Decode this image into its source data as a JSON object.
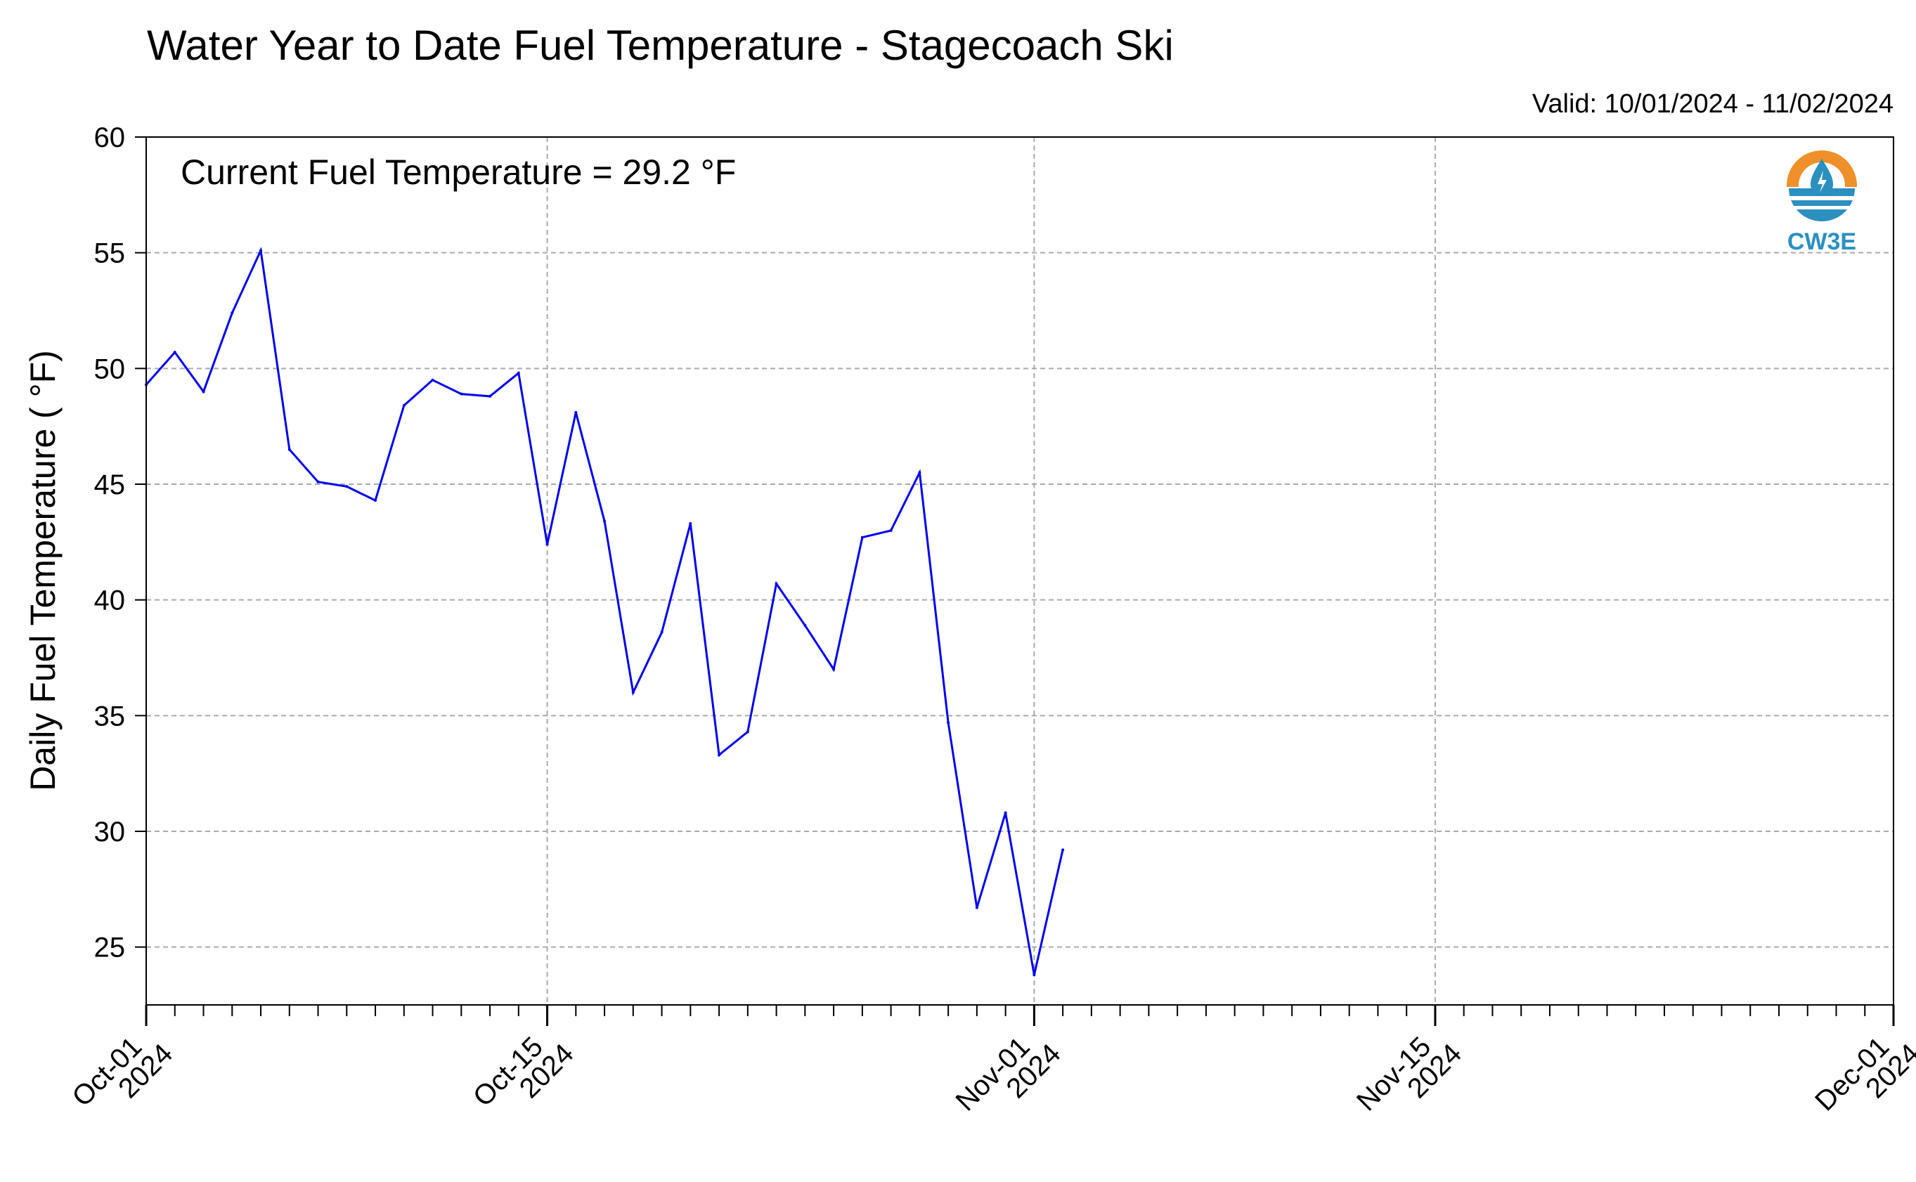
{
  "chart_data": {
    "type": "line",
    "title": "Water Year to Date Fuel Temperature - Stagecoach Ski",
    "subtitle": "Valid: 10/01/2024 - 11/02/2024",
    "annotation": "Current Fuel Temperature = 29.2 °F",
    "ylabel": "Daily Fuel Temperature ( °F)",
    "xlabel": "",
    "xlim": [
      "2024-10-01",
      "2024-12-01"
    ],
    "ylim": [
      22.5,
      60
    ],
    "y_ticks": [
      25,
      30,
      35,
      40,
      45,
      50,
      55,
      60
    ],
    "x_ticks": [
      {
        "date": "2024-10-01",
        "label_line1": "Oct-01",
        "label_line2": "2024"
      },
      {
        "date": "2024-10-15",
        "label_line1": "Oct-15",
        "label_line2": "2024"
      },
      {
        "date": "2024-11-01",
        "label_line1": "Nov-01",
        "label_line2": "2024"
      },
      {
        "date": "2024-11-15",
        "label_line1": "Nov-15",
        "label_line2": "2024"
      },
      {
        "date": "2024-12-01",
        "label_line1": "Dec-01",
        "label_line2": "2024"
      }
    ],
    "minor_ticks": "daily",
    "grid": true,
    "line_color": "#0000ee",
    "series": [
      {
        "x": [
          "2024-10-01",
          "2024-10-02",
          "2024-10-03",
          "2024-10-04",
          "2024-10-05",
          "2024-10-06",
          "2024-10-07",
          "2024-10-08",
          "2024-10-09",
          "2024-10-10",
          "2024-10-11",
          "2024-10-12",
          "2024-10-13",
          "2024-10-14",
          "2024-10-15",
          "2024-10-16",
          "2024-10-17",
          "2024-10-18",
          "2024-10-19",
          "2024-10-20",
          "2024-10-21",
          "2024-10-22",
          "2024-10-23",
          "2024-10-24",
          "2024-10-25",
          "2024-10-26",
          "2024-10-27",
          "2024-10-28",
          "2024-10-29",
          "2024-10-30",
          "2024-10-31",
          "2024-11-01",
          "2024-11-02"
        ],
        "values": [
          49.3,
          50.7,
          49.0,
          52.4,
          55.1,
          46.5,
          45.1,
          44.9,
          44.3,
          48.4,
          49.5,
          48.9,
          48.8,
          49.8,
          42.4,
          48.1,
          43.4,
          36.0,
          38.6,
          43.3,
          33.3,
          34.3,
          40.7,
          38.9,
          37.0,
          42.7,
          43.0,
          45.5,
          34.7,
          26.7,
          30.8,
          23.8,
          29.2
        ]
      }
    ]
  },
  "logo": {
    "text": "CW3E",
    "icon": "cw3e-water-drop-logo-icon",
    "orange": "#f0902a",
    "blue": "#2b8fc0"
  }
}
